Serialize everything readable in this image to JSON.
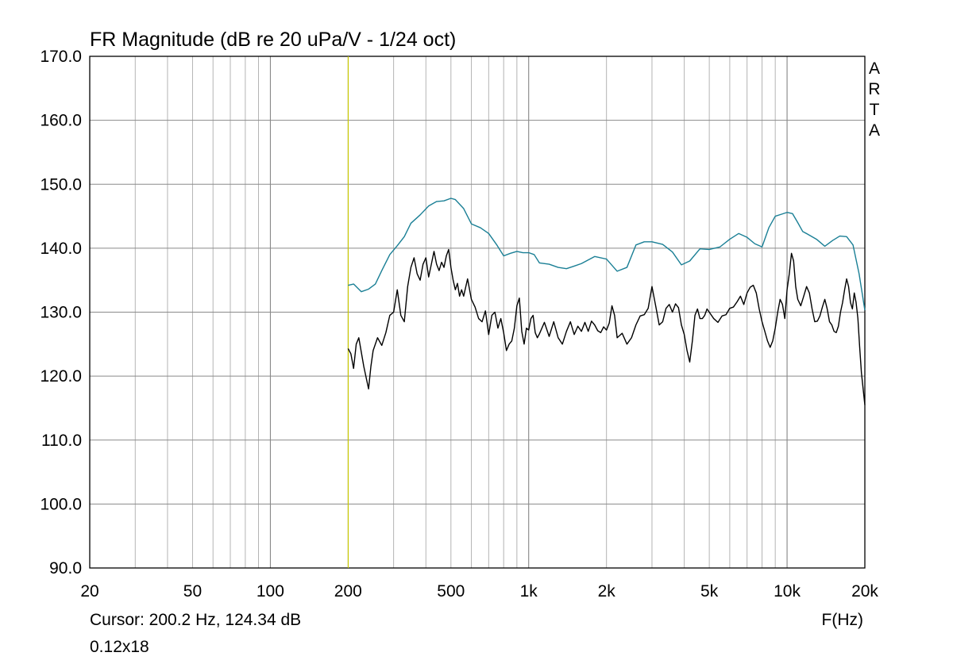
{
  "chart_data": {
    "type": "line",
    "title": "FR Magnitude (dB re 20 uPa/V - 1/24 oct)",
    "xlabel": "F(Hz)",
    "ylabel": "",
    "x_scale": "log",
    "xlim": [
      20,
      20000
    ],
    "ylim": [
      90,
      170
    ],
    "y_ticks": [
      90,
      100,
      110,
      120,
      130,
      140,
      150,
      160,
      170
    ],
    "y_tick_labels": [
      "90.0",
      "100.0",
      "110.0",
      "120.0",
      "130.0",
      "140.0",
      "150.0",
      "160.0",
      "170.0"
    ],
    "x_ticks": [
      20,
      50,
      100,
      200,
      500,
      1000,
      2000,
      5000,
      10000,
      20000
    ],
    "x_tick_labels": [
      "20",
      "50",
      "100",
      "200",
      "500",
      "1k",
      "2k",
      "5k",
      "10k",
      "20k"
    ],
    "grid": true,
    "watermark": "ARTA",
    "cursor_text": "Cursor: 200.2 Hz, 124.34 dB",
    "footnote": "0.12x18",
    "cursor_freq": 200.2,
    "cursor_color": "#c8c800",
    "series": [
      {
        "color": "#1a7f95",
        "x": [
          200,
          210,
          225,
          240,
          255,
          270,
          290,
          310,
          330,
          350,
          380,
          410,
          440,
          470,
          500,
          520,
          560,
          600,
          650,
          700,
          750,
          800,
          850,
          900,
          950,
          1000,
          1050,
          1100,
          1200,
          1300,
          1400,
          1500,
          1600,
          1800,
          2000,
          2200,
          2400,
          2600,
          2800,
          3000,
          3300,
          3600,
          3900,
          4200,
          4600,
          5000,
          5500,
          6000,
          6500,
          7000,
          7500,
          8000,
          8500,
          9000,
          9500,
          10000,
          10500,
          11000,
          11500,
          12000,
          13000,
          14000,
          15000,
          16000,
          17000,
          18000,
          19000,
          20000
        ],
        "values": [
          134.2,
          134.4,
          133.2,
          133.6,
          134.4,
          136.5,
          139.0,
          140.4,
          141.8,
          143.9,
          145.2,
          146.6,
          147.3,
          147.4,
          147.8,
          147.6,
          146.2,
          143.8,
          143.2,
          142.3,
          140.6,
          138.8,
          139.2,
          139.5,
          139.3,
          139.3,
          139.0,
          137.7,
          137.5,
          137.0,
          136.8,
          137.2,
          137.6,
          138.7,
          138.3,
          136.4,
          137.0,
          140.5,
          141.0,
          141.0,
          140.6,
          139.4,
          137.4,
          138.0,
          139.9,
          139.8,
          140.2,
          141.4,
          142.3,
          141.7,
          140.7,
          140.2,
          143.2,
          145.0,
          145.3,
          145.6,
          145.4,
          144.0,
          142.6,
          142.2,
          141.4,
          140.3,
          141.2,
          141.9,
          141.8,
          140.5,
          136.0,
          130.3
        ]
      },
      {
        "color": "#000000",
        "x": [
          200,
          205,
          210,
          215,
          220,
          230,
          240,
          245,
          250,
          260,
          270,
          280,
          290,
          300,
          310,
          320,
          330,
          340,
          350,
          360,
          370,
          380,
          390,
          400,
          410,
          420,
          430,
          440,
          450,
          460,
          470,
          480,
          490,
          500,
          510,
          520,
          530,
          540,
          550,
          560,
          580,
          600,
          620,
          640,
          660,
          680,
          700,
          720,
          740,
          760,
          780,
          800,
          820,
          840,
          860,
          880,
          900,
          920,
          940,
          960,
          980,
          1000,
          1020,
          1040,
          1060,
          1080,
          1100,
          1150,
          1200,
          1250,
          1300,
          1350,
          1400,
          1450,
          1500,
          1550,
          1600,
          1650,
          1700,
          1750,
          1800,
          1850,
          1900,
          1950,
          2000,
          2050,
          2100,
          2150,
          2200,
          2300,
          2400,
          2500,
          2600,
          2700,
          2800,
          2900,
          3000,
          3100,
          3200,
          3300,
          3400,
          3500,
          3600,
          3700,
          3800,
          3900,
          4000,
          4100,
          4200,
          4300,
          4400,
          4500,
          4600,
          4700,
          4800,
          4900,
          5000,
          5200,
          5400,
          5600,
          5800,
          6000,
          6200,
          6400,
          6600,
          6800,
          7000,
          7200,
          7400,
          7600,
          7800,
          8000,
          8200,
          8400,
          8600,
          8800,
          9000,
          9200,
          9400,
          9600,
          9800,
          10000,
          10200,
          10400,
          10600,
          10800,
          11000,
          11300,
          11600,
          11900,
          12200,
          12500,
          12800,
          13100,
          13400,
          13700,
          14000,
          14300,
          14600,
          14900,
          15200,
          15500,
          15800,
          16100,
          16400,
          16700,
          17000,
          17300,
          17600,
          17900,
          18200,
          18500,
          18800,
          19100,
          19400,
          19700,
          20000
        ],
        "values": [
          124.3,
          123.5,
          121.2,
          125.0,
          126.0,
          121.5,
          118.0,
          121.5,
          124.0,
          126.0,
          124.8,
          126.8,
          129.5,
          130.0,
          133.5,
          129.5,
          128.5,
          134.0,
          137.0,
          138.5,
          136.0,
          135.0,
          137.5,
          138.5,
          135.5,
          137.5,
          139.5,
          137.5,
          136.5,
          137.8,
          137.0,
          138.8,
          139.8,
          137.0,
          135.0,
          133.5,
          134.5,
          132.5,
          133.5,
          132.5,
          135.2,
          132.0,
          130.8,
          129.0,
          128.5,
          130.2,
          126.5,
          129.5,
          130.0,
          127.5,
          129.0,
          126.8,
          124.0,
          125.0,
          125.5,
          127.5,
          131.0,
          132.2,
          127.0,
          125.0,
          127.5,
          127.2,
          129.0,
          129.5,
          126.8,
          126.0,
          126.6,
          128.4,
          126.2,
          128.5,
          126.0,
          125.0,
          127.0,
          128.5,
          126.5,
          127.8,
          127.0,
          128.4,
          127.0,
          128.6,
          128.0,
          127.1,
          126.8,
          127.7,
          127.2,
          128.3,
          131.0,
          129.5,
          126.0,
          126.7,
          125.0,
          126.0,
          128.0,
          129.4,
          129.6,
          130.6,
          134.0,
          131.0,
          128.0,
          128.5,
          130.6,
          131.2,
          130.0,
          131.3,
          130.7,
          128.0,
          126.5,
          124.0,
          122.2,
          125.5,
          129.5,
          130.5,
          129.0,
          129.0,
          129.5,
          130.5,
          130.0,
          129.0,
          128.4,
          129.4,
          129.6,
          130.6,
          130.8,
          131.6,
          132.5,
          131.2,
          133.0,
          133.9,
          134.2,
          133.0,
          130.5,
          128.5,
          127.0,
          125.5,
          124.5,
          125.5,
          127.5,
          130.0,
          132.0,
          131.2,
          129.0,
          133.5,
          136.0,
          139.2,
          138.0,
          134.0,
          132.0,
          131.0,
          132.5,
          134.0,
          133.0,
          130.5,
          128.5,
          128.6,
          129.4,
          130.8,
          132.0,
          130.5,
          128.5,
          128.0,
          127.0,
          126.8,
          127.8,
          130.0,
          131.5,
          133.5,
          135.2,
          134.0,
          131.5,
          130.5,
          133.0,
          131.5,
          129.0,
          124.5,
          120.5,
          118.0,
          115.5
        ]
      }
    ]
  }
}
